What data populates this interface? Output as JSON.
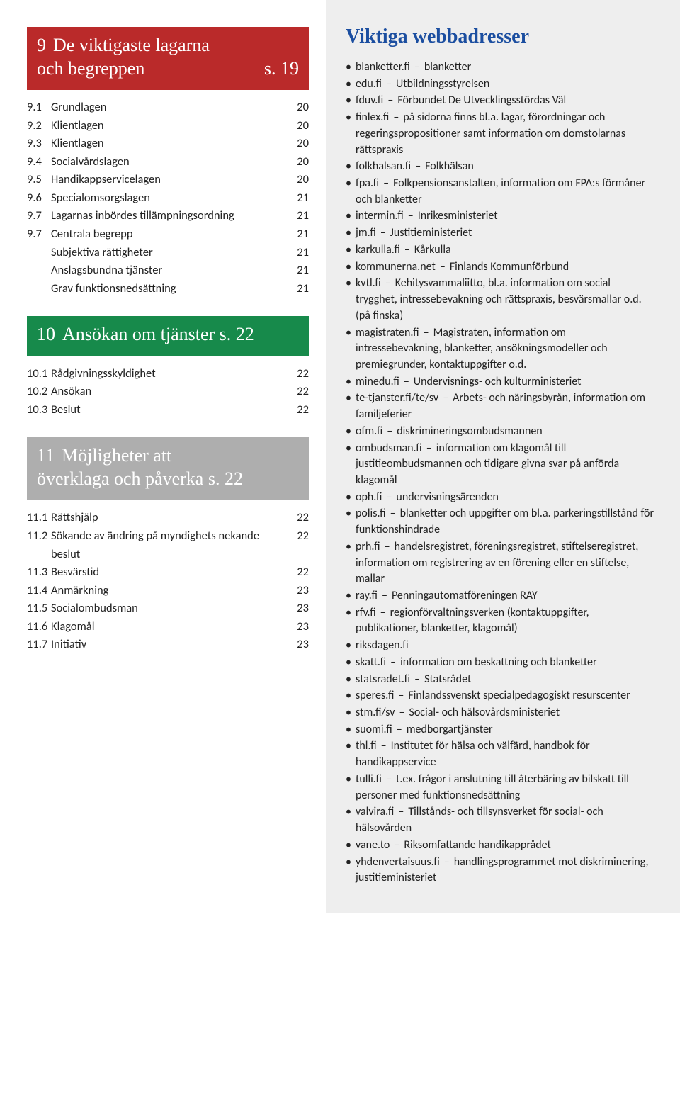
{
  "sections": [
    {
      "header_color": "hdr-red",
      "num": "9",
      "title_lines": [
        "De viktigaste lagarna",
        "och begreppen"
      ],
      "page_ref": "s. 19",
      "items": [
        {
          "num": "9.1",
          "label": "Grundlagen",
          "page": "20"
        },
        {
          "num": "9.2",
          "label": "Klientlagen",
          "page": "20"
        },
        {
          "num": "9.3",
          "label": "Klientlagen",
          "page": "20"
        },
        {
          "num": "9.4",
          "label": "Socialvårdslagen",
          "page": "20"
        },
        {
          "num": "9.5",
          "label": "Handikappservicelagen",
          "page": "20"
        },
        {
          "num": "9.6",
          "label": "Specialomsorgslagen",
          "page": "21"
        },
        {
          "num": "9.7",
          "label": "Lagarnas inbördes tillämpningsordning",
          "page": "21"
        },
        {
          "num": "9.7",
          "label": "Centrala begrepp",
          "page": "21"
        },
        {
          "sub": true,
          "label": "Subjektiva rättigheter",
          "page": "21"
        },
        {
          "sub": true,
          "label": "Anslagsbundna tjänster",
          "page": "21"
        },
        {
          "sub": true,
          "label": "Grav funktionsnedsättning",
          "page": "21"
        }
      ]
    },
    {
      "header_color": "hdr-green",
      "num": "10",
      "title_lines": [
        "Ansökan om tjänster s. 22"
      ],
      "page_ref": "",
      "items": [
        {
          "num": "10.1",
          "label": "Rådgivningsskyldighet",
          "page": "22"
        },
        {
          "num": "10.2",
          "label": "Ansökan",
          "page": "22"
        },
        {
          "num": "10.3",
          "label": "Beslut",
          "page": "22"
        }
      ]
    },
    {
      "header_color": "hdr-grey",
      "num": "11",
      "title_lines": [
        "Möjligheter att",
        "överklaga och påverka s. 22"
      ],
      "page_ref": "",
      "items": [
        {
          "num": "11.1",
          "label": "Rättshjälp",
          "page": "22"
        },
        {
          "num": "11.2",
          "label": "Sökande av ändring på myndighets nekande beslut",
          "page": "22"
        },
        {
          "num": "11.3",
          "label": "Besvärstid",
          "page": "22"
        },
        {
          "num": "11.4",
          "label": "Anmärkning",
          "page": "23"
        },
        {
          "num": "11.5",
          "label": "Socialombudsman",
          "page": "23"
        },
        {
          "num": "11.6",
          "label": "Klagomål",
          "page": "23"
        },
        {
          "num": "11.7",
          "label": "Initiativ",
          "page": "23"
        }
      ]
    }
  ],
  "right_title": "Viktiga webbadresser",
  "addresses": [
    {
      "domain": "blanketter.fi",
      "desc": "blanketter"
    },
    {
      "domain": "edu.fi",
      "desc": "Utbildningsstyrelsen"
    },
    {
      "domain": "fduv.fi",
      "desc": "Förbundet De Utvecklingsstördas Väl"
    },
    {
      "domain": "finlex.fi",
      "desc": "på sidorna finns bl.a. lagar, förordningar och regeringspropositioner samt information om domstolarnas rättspraxis"
    },
    {
      "domain": "folkhalsan.fi",
      "desc": "Folkhälsan"
    },
    {
      "domain": "fpa.fi",
      "desc": "Folkpensionsanstalten, information om FPA:s förmåner och blanketter"
    },
    {
      "domain": "intermin.fi",
      "desc": "Inrikesministeriet"
    },
    {
      "domain": "jm.fi",
      "desc": "Justitieministeriet"
    },
    {
      "domain": "karkulla.fi",
      "desc": "Kårkulla"
    },
    {
      "domain": "kommunerna.net",
      "desc": "Finlands Kommunförbund"
    },
    {
      "domain": "kvtl.fi",
      "desc": "Kehitysvammaliitto, bl.a. information om social trygghet, intressebevakning och rättspraxis, besvärsmallar o.d. (på finska)"
    },
    {
      "domain": "magistraten.fi",
      "desc": "Magistraten, information om intressebevakning, blanketter, ansökningsmodeller och premiegrunder, kontaktuppgifter o.d."
    },
    {
      "domain": "minedu.fi",
      "desc": "Undervisnings- och kulturministeriet"
    },
    {
      "domain": "te-tjanster.fi/te/sv",
      "desc": "Arbets- och näringsbyrån, information om familjeferier"
    },
    {
      "domain": "ofm.fi",
      "desc": "diskrimineringsombudsmannen"
    },
    {
      "domain": "ombudsman.fi",
      "desc": "information om klagomål till justitieombudsmannen och tidigare givna svar på anförda klagomål"
    },
    {
      "domain": "oph.fi",
      "desc": "undervisningsärenden"
    },
    {
      "domain": "polis.fi",
      "desc": "blanketter och uppgifter om bl.a. parkeringstillstånd för funktionshindrade"
    },
    {
      "domain": "prh.fi",
      "desc": "handelsregistret, föreningsregistret, stiftelseregistret, information om registrering av en förening eller en stiftelse, mallar"
    },
    {
      "domain": "ray.fi",
      "desc": "Penningautomatföreningen RAY"
    },
    {
      "domain": "rfv.fi",
      "desc": "regionförvaltningsverken (kontaktuppgifter, publikationer, blanketter, klagomål)"
    },
    {
      "domain": "riksdagen.fi",
      "desc": ""
    },
    {
      "domain": "skatt.fi",
      "desc": "information om beskattning och blanketter"
    },
    {
      "domain": "statsradet.fi",
      "desc": "Statsrådet"
    },
    {
      "domain": "speres.fi",
      "desc": "Finlandssvenskt specialpedagogiskt resurscenter"
    },
    {
      "domain": "stm.fi/sv",
      "desc": "Social- och hälsovårdsministeriet"
    },
    {
      "domain": "suomi.fi",
      "desc": "medborgartjänster"
    },
    {
      "domain": "thl.fi",
      "desc": "Institutet för hälsa och välfärd, handbok för handikappservice"
    },
    {
      "domain": "tulli.fi",
      "desc": "t.ex. frågor i anslutning till återbäring av bilskatt till personer med funktionsnedsättning"
    },
    {
      "domain": "valvira.fi",
      "desc": "Tillstånds- och tillsynsverket för social- och hälsovården"
    },
    {
      "domain": "vane.to",
      "desc": "Riksomfattande handikapprådet"
    },
    {
      "domain": "yhdenvertaisuus.fi",
      "desc": "handlingsprogrammet mot diskriminering, justitieministeriet"
    }
  ]
}
